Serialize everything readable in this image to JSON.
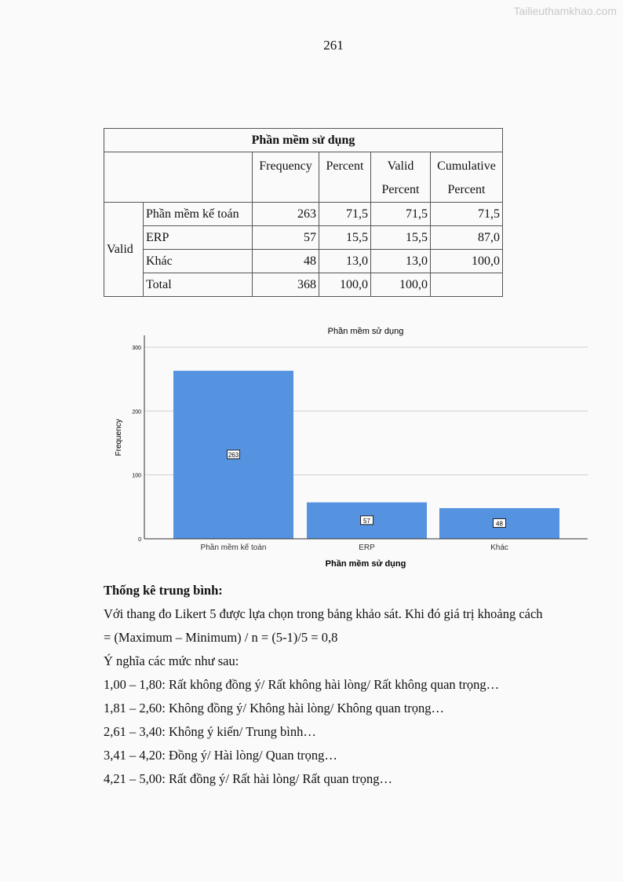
{
  "watermark": "Tailieuthamkhao.com",
  "page_number": "261",
  "table": {
    "title": "Phần mềm sử dụng",
    "headers": [
      "Frequency",
      "Percent",
      "Valid Percent",
      "Cumulative Percent"
    ],
    "group_label": "Valid",
    "rows": [
      {
        "label": "Phần mềm kế toán",
        "frequency": "263",
        "percent": "71,5",
        "valid_percent": "71,5",
        "cumulative_percent": "71,5"
      },
      {
        "label": "ERP",
        "frequency": "57",
        "percent": "15,5",
        "valid_percent": "15,5",
        "cumulative_percent": "87,0"
      },
      {
        "label": "Khác",
        "frequency": "48",
        "percent": "13,0",
        "valid_percent": "13,0",
        "cumulative_percent": "100,0"
      },
      {
        "label": "Total",
        "frequency": "368",
        "percent": "100,0",
        "valid_percent": "100,0",
        "cumulative_percent": ""
      }
    ]
  },
  "chart_data": {
    "type": "bar",
    "title": "Phần mềm sử dụng",
    "xlabel": "Phần mềm sử dụng",
    "ylabel": "Frequency",
    "categories": [
      "Phần mềm kế toán",
      "ERP",
      "Khác"
    ],
    "values": [
      263,
      57,
      48
    ],
    "data_labels": [
      "263",
      "57",
      "48"
    ],
    "ylim": [
      0,
      315
    ],
    "yticks": [
      "0",
      "100",
      "200",
      "300"
    ],
    "grid": true,
    "bar_color": "#5592e0"
  },
  "text": {
    "heading": "Thống kê trung bình:",
    "p1": "Với thang đo Likert 5 được lựa chọn trong bảng khảo sát. Khi đó giá trị khoảng cách",
    "p2": "= (Maximum – Minimum) / n = (5-1)/5 = 0,8",
    "p3": "Ý nghĩa các mức như sau:",
    "levels": [
      "1,00 – 1,80: Rất không đồng ý/ Rất không hài lòng/ Rất không quan trọng…",
      "1,81 – 2,60: Không đồng ý/ Không hài lòng/ Không quan trọng…",
      "2,61 – 3,40: Không ý kiến/ Trung bình…",
      "3,41 – 4,20: Đồng ý/ Hài lòng/ Quan trọng…",
      "4,21 – 5,00: Rất đồng ý/ Rất hài lòng/ Rất quan trọng…"
    ]
  }
}
